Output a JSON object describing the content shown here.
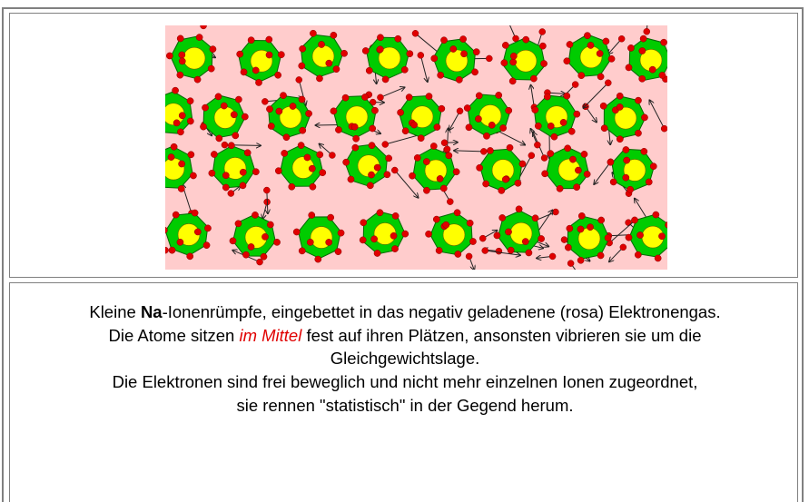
{
  "caption": [
    {
      "segments": [
        {
          "text": "Kleine ",
          "style": "normal"
        },
        {
          "text": "Na",
          "style": "bold"
        },
        {
          "text": "-Ionenrümpfe, eingebettet in das negativ geladenene (rosa) Elektronengas.",
          "style": "normal"
        }
      ]
    },
    {
      "segments": [
        {
          "text": "Die Atome sitzen ",
          "style": "normal"
        },
        {
          "text": "im Mittel",
          "style": "emphasis"
        },
        {
          "text": " fest auf ihren Plätzen, ansonsten vibrieren sie um die Gleichgewichtslage.",
          "style": "normal"
        }
      ]
    },
    {
      "segments": [
        {
          "text": "Die Elektronen sind frei beweglich und nicht mehr einzelnen Ionen zugeordnet,",
          "style": "normal"
        }
      ]
    },
    {
      "segments": [
        {
          "text": "sie rennen \"statistisch\" in der Gegend herum.",
          "style": "normal"
        }
      ]
    }
  ]
}
